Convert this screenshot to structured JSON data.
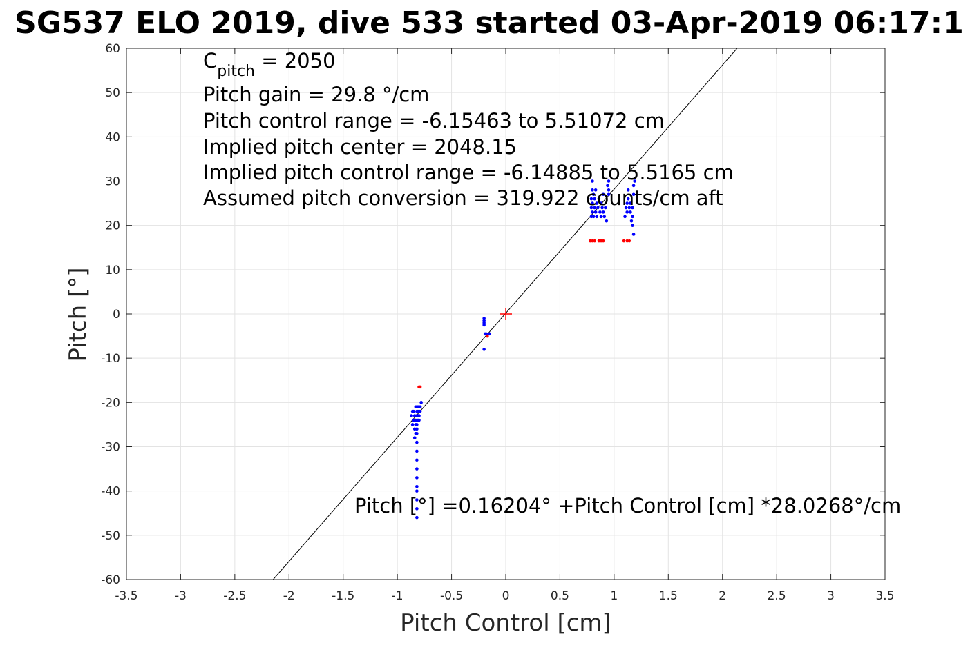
{
  "chart_data": {
    "type": "scatter",
    "title": "SG537 ELO 2019, dive 533 started 03-Apr-2019 06:17:1",
    "xlabel": "Pitch Control [cm]",
    "ylabel": "Pitch [°]",
    "xlim": [
      -3.5,
      3.5
    ],
    "ylim": [
      -60,
      60
    ],
    "xticks": [
      -3.5,
      -3,
      -2.5,
      -2,
      -1.5,
      -1,
      -0.5,
      0,
      0.5,
      1,
      1.5,
      2,
      2.5,
      3,
      3.5
    ],
    "xtick_labels": [
      "-3.5",
      "-3",
      "-2.5",
      "-2",
      "-1.5",
      "-1",
      "-0.5",
      "0",
      "0.5",
      "1",
      "1.5",
      "2",
      "2.5",
      "3",
      "3.5"
    ],
    "yticks": [
      -60,
      -50,
      -40,
      -30,
      -20,
      -10,
      0,
      10,
      20,
      30,
      40,
      50,
      60
    ],
    "ytick_labels": [
      "-60",
      "-50",
      "-40",
      "-30",
      "-20",
      "-10",
      "0",
      "10",
      "20",
      "30",
      "40",
      "50",
      "60"
    ],
    "grid": true,
    "colors": {
      "fit_line": "#000000",
      "valid": "#0000ff",
      "excluded": "#ff0000",
      "grid": "#e3e3e3",
      "axis": "#262626"
    },
    "fit_line": {
      "intercept": 0.16204,
      "slope": 28.0268
    },
    "center_marker": {
      "x": 0,
      "y": 0,
      "marker": "plus"
    },
    "series": [
      {
        "marker": "dot",
        "color": "#0000ff",
        "x": [
          -0.87,
          -0.86,
          -0.86,
          -0.85,
          -0.85,
          -0.84,
          -0.84,
          -0.84,
          -0.83,
          -0.83,
          -0.83,
          -0.83,
          -0.82,
          -0.82,
          -0.82,
          -0.82,
          -0.82,
          -0.82,
          -0.82,
          -0.82,
          -0.82,
          -0.82,
          -0.82,
          -0.82,
          -0.82,
          -0.82,
          -0.82,
          -0.82,
          -0.81,
          -0.81,
          -0.81,
          -0.81,
          -0.81,
          -0.8,
          -0.8,
          -0.8,
          -0.8,
          -0.79,
          -0.79,
          -0.78,
          -0.2,
          -0.2,
          -0.2,
          -0.2,
          -0.19,
          -0.2,
          -0.18,
          -0.15,
          0.79,
          0.79,
          0.79,
          0.8,
          0.8,
          0.8,
          0.8,
          0.81,
          0.81,
          0.82,
          0.82,
          0.83,
          0.83,
          0.84,
          0.84,
          0.85,
          0.86,
          0.87,
          0.88,
          0.88,
          0.89,
          0.9,
          0.9,
          0.91,
          0.92,
          0.93,
          0.94,
          0.95,
          0.95,
          0.95,
          1.1,
          1.11,
          1.12,
          1.12,
          1.13,
          1.13,
          1.14,
          1.15,
          1.15,
          1.16,
          1.17,
          1.17,
          1.17,
          1.18,
          1.18,
          1.18,
          1.19
        ],
        "y": [
          -23,
          -22,
          -25,
          -24,
          -22,
          -26,
          -23,
          -28,
          -21,
          -25,
          -27,
          -24,
          -21,
          -23,
          -25,
          -27,
          -29,
          -31,
          -33,
          -35,
          -37,
          -39,
          -40,
          -42,
          -44,
          -46,
          -26,
          -22,
          -21,
          -24,
          -22,
          -23,
          -21,
          -22,
          -21,
          -23,
          -24,
          -21,
          -22,
          -20,
          -1,
          -1.5,
          -2,
          -2.5,
          -4.5,
          -8,
          -4.5,
          -4.5,
          22,
          24,
          26,
          28,
          30,
          23,
          25,
          22,
          27,
          24,
          26,
          23,
          28,
          22,
          25,
          24,
          26,
          23,
          22,
          25,
          24,
          27,
          23,
          22,
          24,
          21,
          29,
          30,
          28,
          27,
          22,
          24,
          25,
          23,
          26,
          28,
          24,
          23,
          25,
          21,
          22,
          24,
          20,
          18,
          27,
          29,
          30
        ]
      },
      {
        "marker": "dot",
        "color": "#ff0000",
        "x": [
          -0.8,
          -0.79,
          -0.17,
          0.78,
          0.8,
          0.82,
          0.86,
          0.88,
          0.9,
          1.09,
          1.12,
          1.14
        ],
        "y": [
          -16.5,
          -16.5,
          -5,
          16.5,
          16.5,
          16.5,
          16.5,
          16.5,
          16.5,
          16.5,
          16.5,
          16.5
        ]
      }
    ],
    "annotations": {
      "cpitch_prefix": "C",
      "cpitch_sub": "pitch",
      "cpitch_suffix": " = 2050",
      "pitch_gain": "Pitch gain = 29.8 °/cm",
      "control_range": "Pitch control range = -6.15463 to 5.51072 cm",
      "implied_center": "Implied pitch center = 2048.15",
      "implied_range": "Implied pitch control range = -6.14885 to 5.5165 cm",
      "conversion": "Assumed pitch conversion = 319.922 counts/cm aft",
      "fit_equation": "Pitch [°] =0.16204° +Pitch Control [cm] *28.0268°/cm"
    }
  }
}
